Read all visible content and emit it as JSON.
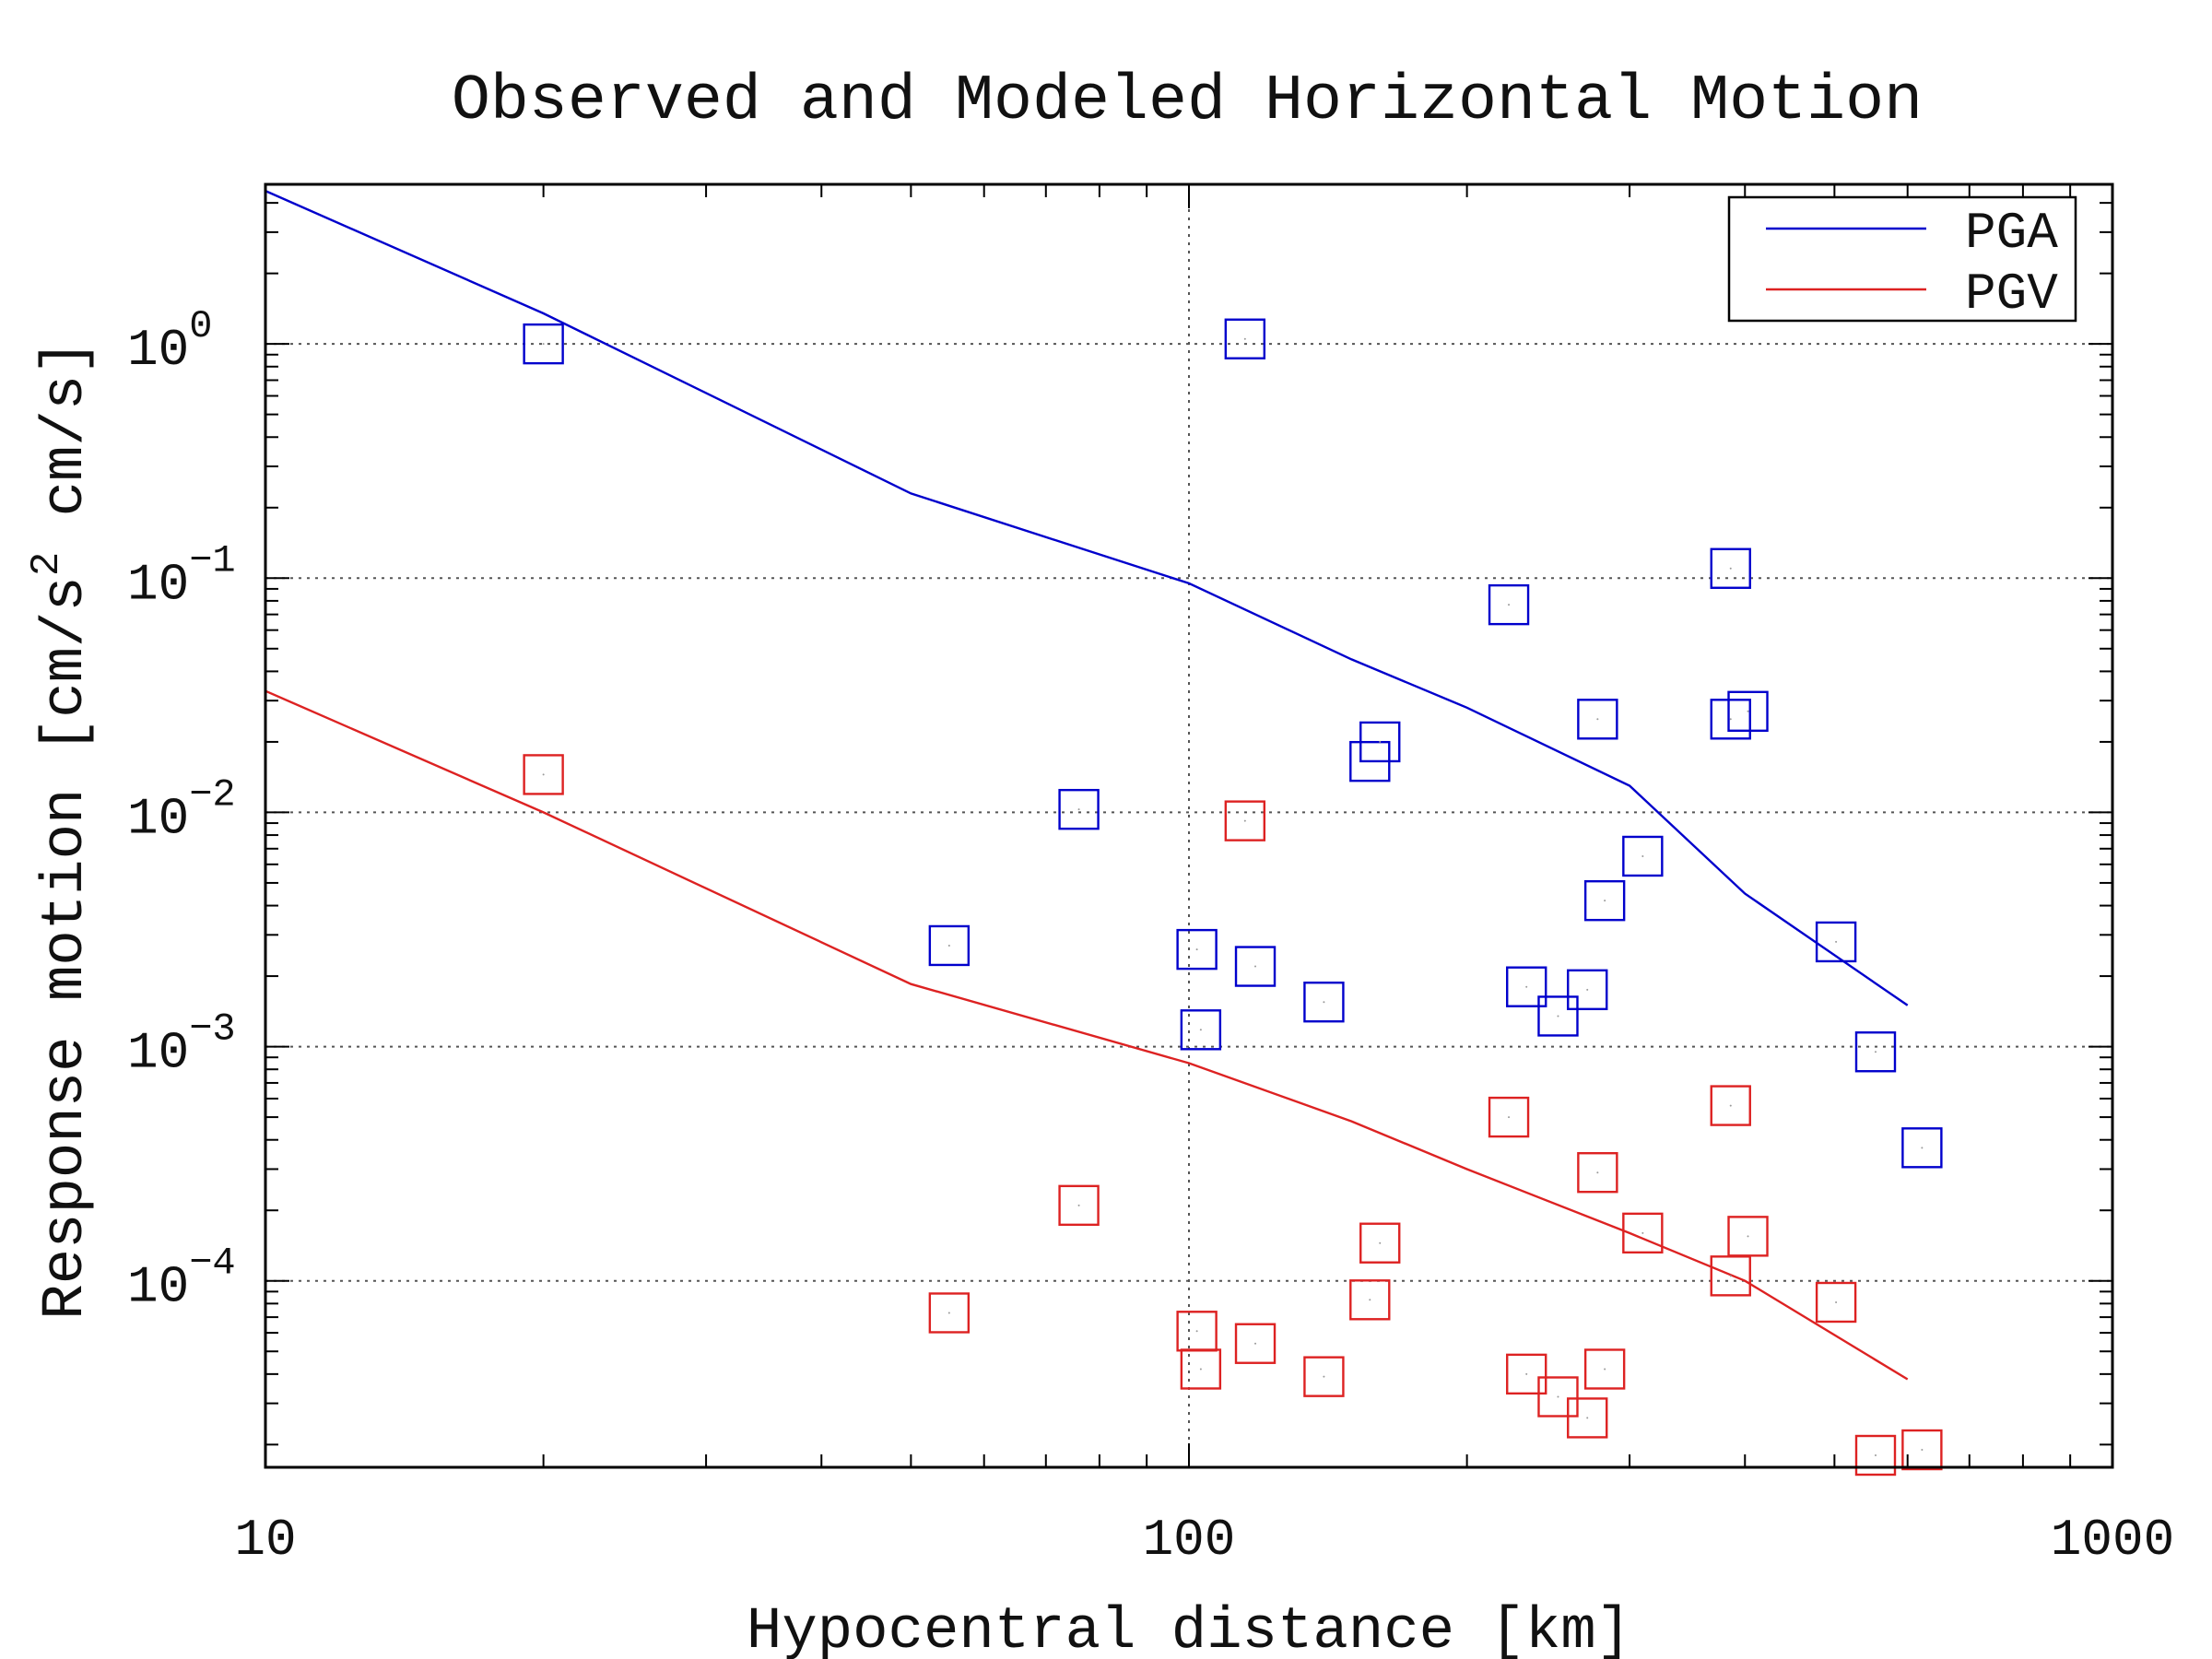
{
  "chart_data": {
    "type": "scatter",
    "title": "Observed and Modeled Horizontal Motion",
    "xlabel": "Hypocentral distance [km]",
    "ylabel": "Response motion [cm/s²  cm/s]",
    "x_scale": "log",
    "y_scale": "log",
    "xlim": [
      10,
      1000
    ],
    "ylim": [
      1.6e-05,
      4.8
    ],
    "x_ticks": [
      {
        "value": 10,
        "label": "10"
      },
      {
        "value": 100,
        "label": "100"
      },
      {
        "value": 1000,
        "label": "1000"
      }
    ],
    "y_ticks": [
      {
        "value": 1,
        "label": "10",
        "exponent": "0"
      },
      {
        "value": 0.1,
        "label": "10",
        "exponent": "−1"
      },
      {
        "value": 0.01,
        "label": "10",
        "exponent": "−2"
      },
      {
        "value": 0.001,
        "label": "10",
        "exponent": "−3"
      },
      {
        "value": 0.0001,
        "label": "10",
        "exponent": "−4"
      }
    ],
    "grid": "dotted, at major ticks",
    "legend_position": "top-right",
    "series": [
      {
        "name": "PGA",
        "color": "#0000cc",
        "model_line": [
          [
            10,
            4.5
          ],
          [
            20,
            1.35
          ],
          [
            50,
            0.23
          ],
          [
            100,
            0.095
          ],
          [
            150,
            0.045
          ],
          [
            200,
            0.028
          ],
          [
            300,
            0.013
          ],
          [
            400,
            0.0045
          ],
          [
            600,
            0.0015
          ]
        ],
        "observed": [
          [
            20,
            1.0
          ],
          [
            115,
            1.05
          ],
          [
            55,
            0.0027
          ],
          [
            76,
            0.0103
          ],
          [
            102,
            0.0026
          ],
          [
            118,
            0.0022
          ],
          [
            103,
            0.00118
          ],
          [
            140,
            0.00155
          ],
          [
            157,
            0.0165
          ],
          [
            161,
            0.02
          ],
          [
            222,
            0.077
          ],
          [
            232,
            0.0018
          ],
          [
            251,
            0.00135
          ],
          [
            270,
            0.00175
          ],
          [
            277,
            0.025
          ],
          [
            282,
            0.0042
          ],
          [
            310,
            0.0065
          ],
          [
            386,
            0.11
          ],
          [
            386,
            0.025
          ],
          [
            403,
            0.027
          ],
          [
            502,
            0.0028
          ],
          [
            554,
            0.00095
          ],
          [
            622,
            0.00037
          ]
        ]
      },
      {
        "name": "PGV",
        "color": "#dd2222",
        "model_line": [
          [
            10,
            0.033
          ],
          [
            20,
            0.01
          ],
          [
            50,
            0.00185
          ],
          [
            100,
            0.00085
          ],
          [
            150,
            0.00048
          ],
          [
            200,
            0.0003
          ],
          [
            300,
            0.00016
          ],
          [
            400,
            0.0001
          ],
          [
            600,
            3.8e-05
          ]
        ],
        "observed": [
          [
            20,
            0.0145
          ],
          [
            115,
            0.0092
          ],
          [
            55,
            7.3e-05
          ],
          [
            76,
            0.00021
          ],
          [
            102,
            6.1e-05
          ],
          [
            118,
            5.4e-05
          ],
          [
            103,
            4.2e-05
          ],
          [
            140,
            3.9e-05
          ],
          [
            157,
            8.3e-05
          ],
          [
            161,
            0.000145
          ],
          [
            222,
            0.0005
          ],
          [
            232,
            4e-05
          ],
          [
            251,
            3.2e-05
          ],
          [
            270,
            2.6e-05
          ],
          [
            277,
            0.00029
          ],
          [
            282,
            4.2e-05
          ],
          [
            310,
            0.00016
          ],
          [
            386,
            0.00056
          ],
          [
            386,
            0.000105
          ],
          [
            403,
            0.000155
          ],
          [
            502,
            8.1e-05
          ],
          [
            554,
            1.8e-05
          ],
          [
            622,
            1.9e-05
          ]
        ]
      }
    ]
  }
}
